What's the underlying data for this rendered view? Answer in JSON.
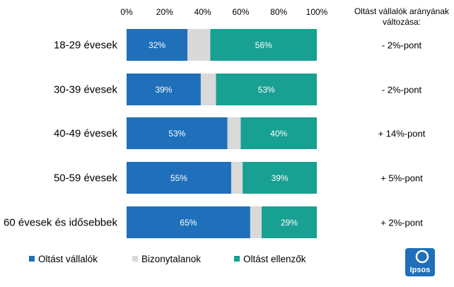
{
  "chart_data": {
    "type": "bar",
    "orientation": "horizontal",
    "stacked": true,
    "categories": [
      "18-29 évesek",
      "30-39 évesek",
      "40-49 évesek",
      "50-59 évesek",
      "60 évesek és idősebbek"
    ],
    "series": [
      {
        "name": "Oltást vállalók",
        "color": "#1f6fba",
        "values": [
          32,
          39,
          53,
          55,
          65
        ],
        "value_labels": [
          "32%",
          "39%",
          "53%",
          "55%",
          "65%"
        ]
      },
      {
        "name": "Bizonytalanok",
        "color": "#d9d9d9",
        "values": [
          12,
          8,
          7,
          6,
          6
        ],
        "value_labels": [
          "",
          "",
          "",
          "",
          ""
        ]
      },
      {
        "name": "Oltást ellenzők",
        "color": "#18a092",
        "values": [
          56,
          53,
          40,
          39,
          29
        ],
        "value_labels": [
          "56%",
          "53%",
          "40%",
          "39%",
          "29%"
        ]
      }
    ],
    "xlim": [
      0,
      100
    ],
    "x_ticks": [
      "0%",
      "20%",
      "40%",
      "60%",
      "80%",
      "100%"
    ],
    "x_tick_values": [
      0,
      20,
      40,
      60,
      80,
      100
    ],
    "grid": false,
    "legend_position": "bottom",
    "side_column": {
      "title_lines": [
        "Oltást vállalók arányának",
        "változása:"
      ],
      "values": [
        "- 2%-pont",
        "- 2%-pont",
        "+ 14%-pont",
        "+ 5%-pont",
        "+ 2%-pont"
      ]
    }
  },
  "logo": {
    "text": "Ipsos",
    "color": "#1f6fba"
  }
}
